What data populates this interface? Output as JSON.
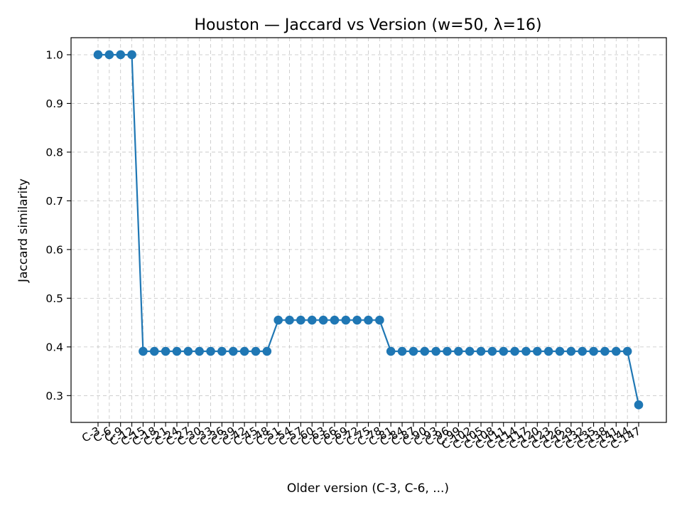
{
  "chart_data": {
    "type": "line",
    "title": "Houston — Jaccard vs Version (w=50, λ=16)",
    "xlabel": "Older version (C-3, C-6, ...)",
    "ylabel": "Jaccard similarity",
    "ylim": [
      0.245,
      1.035
    ],
    "yticks": [
      "0.3",
      "0.4",
      "0.5",
      "0.6",
      "0.7",
      "0.8",
      "0.9",
      "1.0"
    ],
    "grid": true,
    "color": "#1f77b4",
    "categories": [
      "C-3",
      "C-6",
      "C-9",
      "C-12",
      "C-15",
      "C-18",
      "C-21",
      "C-24",
      "C-27",
      "C-30",
      "C-33",
      "C-36",
      "C-39",
      "C-42",
      "C-45",
      "C-48",
      "C-51",
      "C-54",
      "C-57",
      "C-60",
      "C-63",
      "C-66",
      "C-69",
      "C-72",
      "C-75",
      "C-78",
      "C-81",
      "C-84",
      "C-87",
      "C-90",
      "C-93",
      "C-96",
      "C-99",
      "C-102",
      "C-105",
      "C-108",
      "C-111",
      "C-114",
      "C-117",
      "C-120",
      "C-123",
      "C-126",
      "C-129",
      "C-132",
      "C-135",
      "C-138",
      "C-141",
      "C-144",
      "C-147"
    ],
    "series": [
      {
        "values": [
          1.0,
          1.0,
          1.0,
          1.0,
          0.391,
          0.391,
          0.391,
          0.391,
          0.391,
          0.391,
          0.391,
          0.391,
          0.391,
          0.391,
          0.391,
          0.391,
          0.455,
          0.455,
          0.455,
          0.455,
          0.455,
          0.455,
          0.455,
          0.455,
          0.455,
          0.455,
          0.391,
          0.391,
          0.391,
          0.391,
          0.391,
          0.391,
          0.391,
          0.391,
          0.391,
          0.391,
          0.391,
          0.391,
          0.391,
          0.391,
          0.391,
          0.391,
          0.391,
          0.391,
          0.391,
          0.391,
          0.391,
          0.391,
          0.281
        ]
      }
    ]
  }
}
